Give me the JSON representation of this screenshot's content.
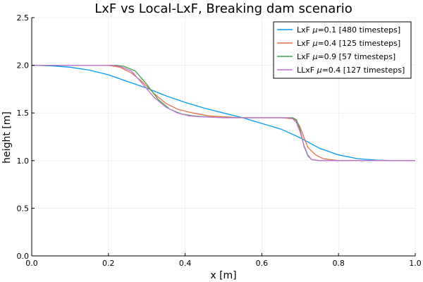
{
  "chart_data": {
    "type": "line",
    "title": "LxF vs Local-LxF, Breaking dam scenario",
    "xlabel": "x [m]",
    "ylabel": "height [m]",
    "xlim": [
      0,
      1
    ],
    "ylim": [
      0,
      2.5
    ],
    "xticks": [
      0,
      0.2,
      0.4,
      0.6,
      0.8,
      1
    ],
    "xtick_labels": [
      "0.0",
      "0.2",
      "0.4",
      "0.6",
      "0.8",
      "1.0"
    ],
    "yticks": [
      0,
      0.5,
      1,
      1.5,
      2,
      2.5
    ],
    "ytick_labels": [
      "0.0",
      "0.5",
      "1.0",
      "1.5",
      "2.0",
      "2.5"
    ],
    "grid": true,
    "legend_position": "top-right",
    "series": [
      {
        "name_parts": [
          "LxF ",
          "μ",
          "=0.1 [480 timesteps]"
        ],
        "color": "#009AFA",
        "x": [
          0,
          0.05,
          0.1,
          0.15,
          0.2,
          0.25,
          0.3,
          0.35,
          0.4,
          0.45,
          0.5,
          0.55,
          0.6,
          0.65,
          0.7,
          0.75,
          0.8,
          0.85,
          0.9,
          0.95,
          1.0
        ],
        "y": [
          2.0,
          1.995,
          1.98,
          1.95,
          1.9,
          1.83,
          1.76,
          1.68,
          1.61,
          1.55,
          1.5,
          1.45,
          1.39,
          1.33,
          1.24,
          1.13,
          1.06,
          1.02,
          1.005,
          1.0,
          1.0
        ]
      },
      {
        "name_parts": [
          "LxF ",
          "μ",
          "=0.4 [125 timesteps]"
        ],
        "color": "#E36F47",
        "x": [
          0,
          0.2,
          0.23,
          0.26,
          0.29,
          0.32,
          0.35,
          0.38,
          0.42,
          0.46,
          0.5,
          0.55,
          0.6,
          0.65,
          0.68,
          0.69,
          0.7,
          0.71,
          0.72,
          0.74,
          0.76,
          0.8,
          0.85,
          1.0
        ],
        "y": [
          2.0,
          2.0,
          1.98,
          1.92,
          1.82,
          1.7,
          1.6,
          1.54,
          1.5,
          1.47,
          1.46,
          1.45,
          1.45,
          1.45,
          1.44,
          1.42,
          1.35,
          1.24,
          1.14,
          1.06,
          1.02,
          1.0,
          1.0,
          1.0
        ]
      },
      {
        "name_parts": [
          "LxF ",
          "μ",
          "=0.9 [57 timesteps]"
        ],
        "color": "#3EA44E",
        "x": [
          0,
          0.22,
          0.24,
          0.27,
          0.3,
          0.33,
          0.36,
          0.39,
          0.42,
          0.45,
          0.5,
          0.6,
          0.68,
          0.69,
          0.7,
          0.71,
          0.72,
          0.73,
          0.75,
          1.0
        ],
        "y": [
          2.0,
          2.0,
          1.99,
          1.94,
          1.8,
          1.64,
          1.54,
          1.49,
          1.47,
          1.46,
          1.45,
          1.45,
          1.45,
          1.43,
          1.32,
          1.15,
          1.05,
          1.01,
          1.0,
          1.0
        ]
      },
      {
        "name_parts": [
          "LLxF ",
          "μ",
          "=0.4 [127 timesteps]"
        ],
        "color": "#C271D2",
        "x": [
          0,
          0.21,
          0.23,
          0.26,
          0.29,
          0.32,
          0.35,
          0.38,
          0.41,
          0.44,
          0.5,
          0.6,
          0.67,
          0.68,
          0.69,
          0.7,
          0.71,
          0.72,
          0.73,
          0.75,
          1.0
        ],
        "y": [
          2.0,
          2.0,
          1.99,
          1.94,
          1.8,
          1.66,
          1.56,
          1.5,
          1.47,
          1.46,
          1.45,
          1.45,
          1.45,
          1.44,
          1.4,
          1.3,
          1.16,
          1.06,
          1.01,
          1.0,
          1.0
        ]
      }
    ]
  }
}
